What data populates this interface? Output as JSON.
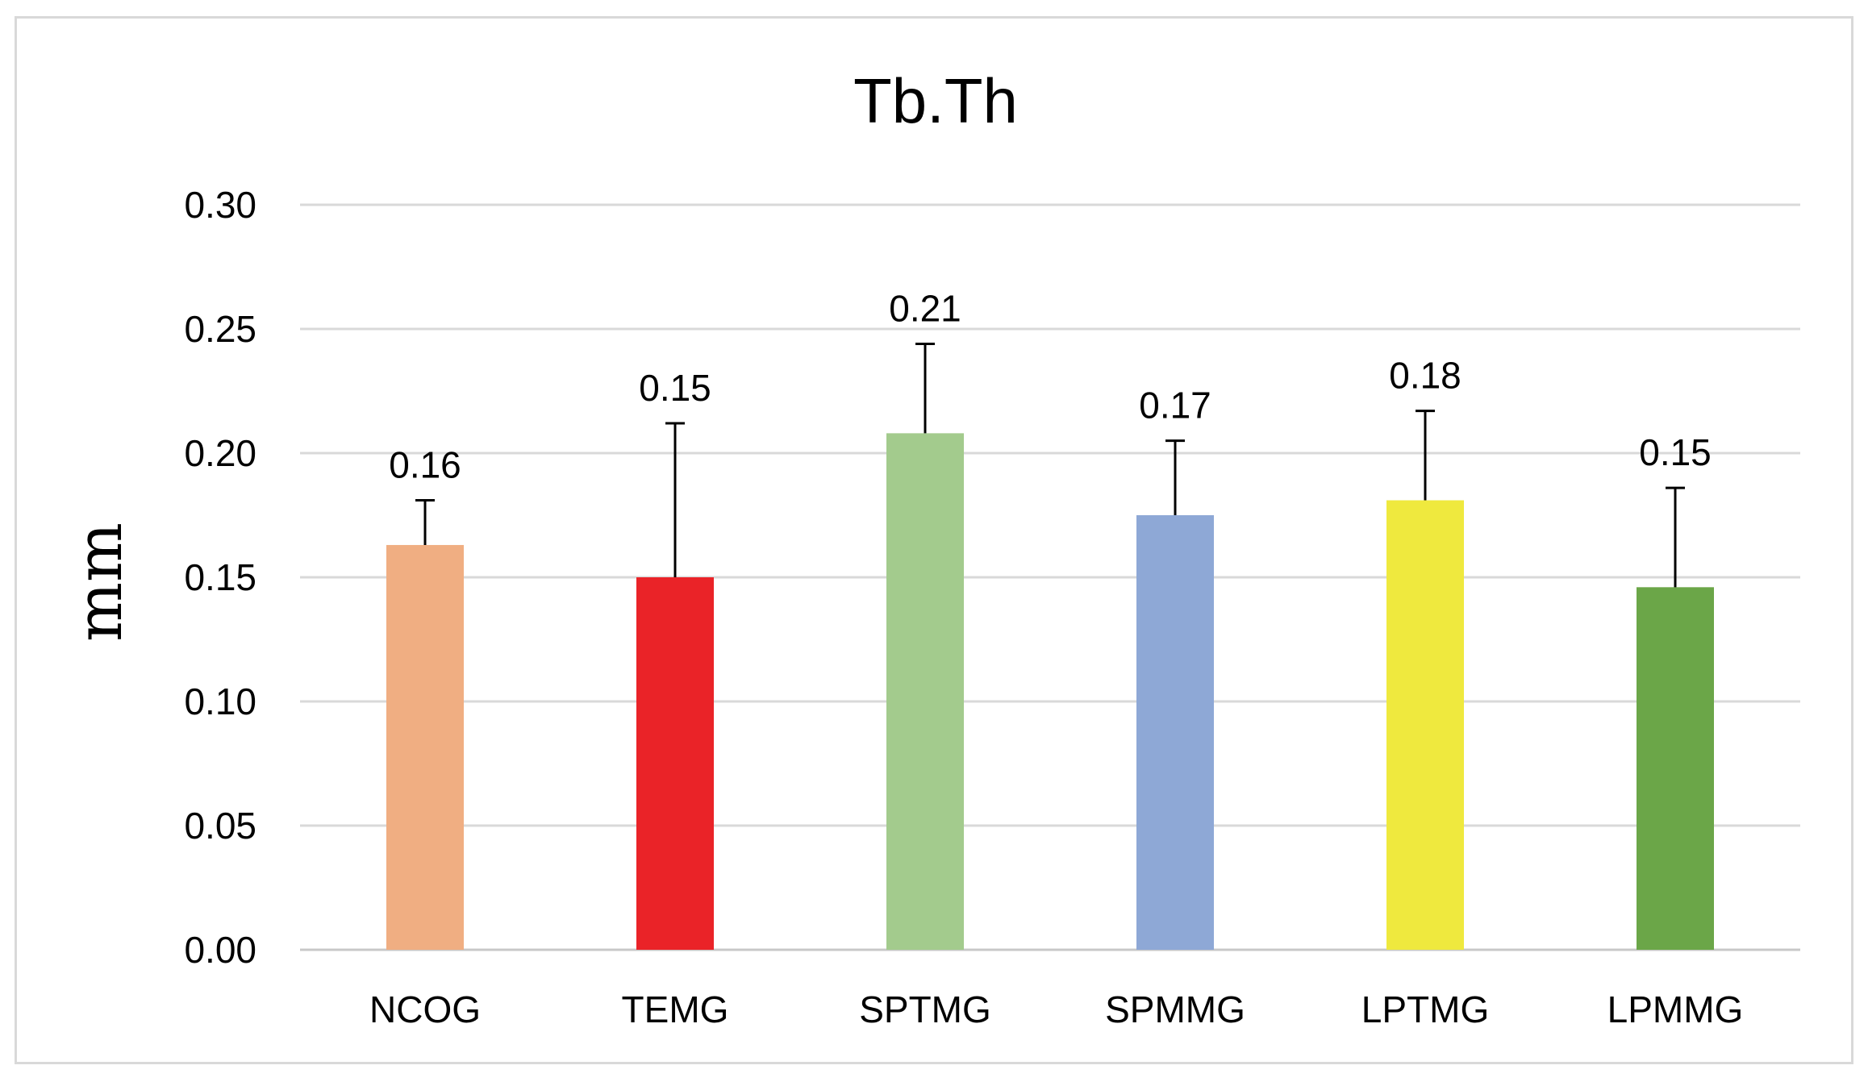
{
  "chart_data": {
    "type": "bar",
    "title": "Tb.Th",
    "xlabel": "",
    "ylabel": "mm",
    "ylim": [
      0,
      0.3
    ],
    "yticks": [
      0.0,
      0.05,
      0.1,
      0.15,
      0.2,
      0.25,
      0.3
    ],
    "ytick_labels": [
      "0.00",
      "0.05",
      "0.10",
      "0.15",
      "0.20",
      "0.25",
      "0.30"
    ],
    "grid": true,
    "legend": "none",
    "categories": [
      "NCOG",
      "TEMG",
      "SPTMG",
      "SPMMG",
      "LPTMG",
      "LPMMG"
    ],
    "values": [
      0.163,
      0.15,
      0.208,
      0.175,
      0.181,
      0.146
    ],
    "error_upper": [
      0.181,
      0.212,
      0.244,
      0.205,
      0.217,
      0.186
    ],
    "data_labels": [
      "0.16",
      "0.15",
      "0.21",
      "0.17",
      "0.18",
      "0.15"
    ],
    "colors": [
      "#f0ae82",
      "#ea2328",
      "#a3cb8d",
      "#8ea8d6",
      "#efe93e",
      "#6ba648"
    ]
  }
}
